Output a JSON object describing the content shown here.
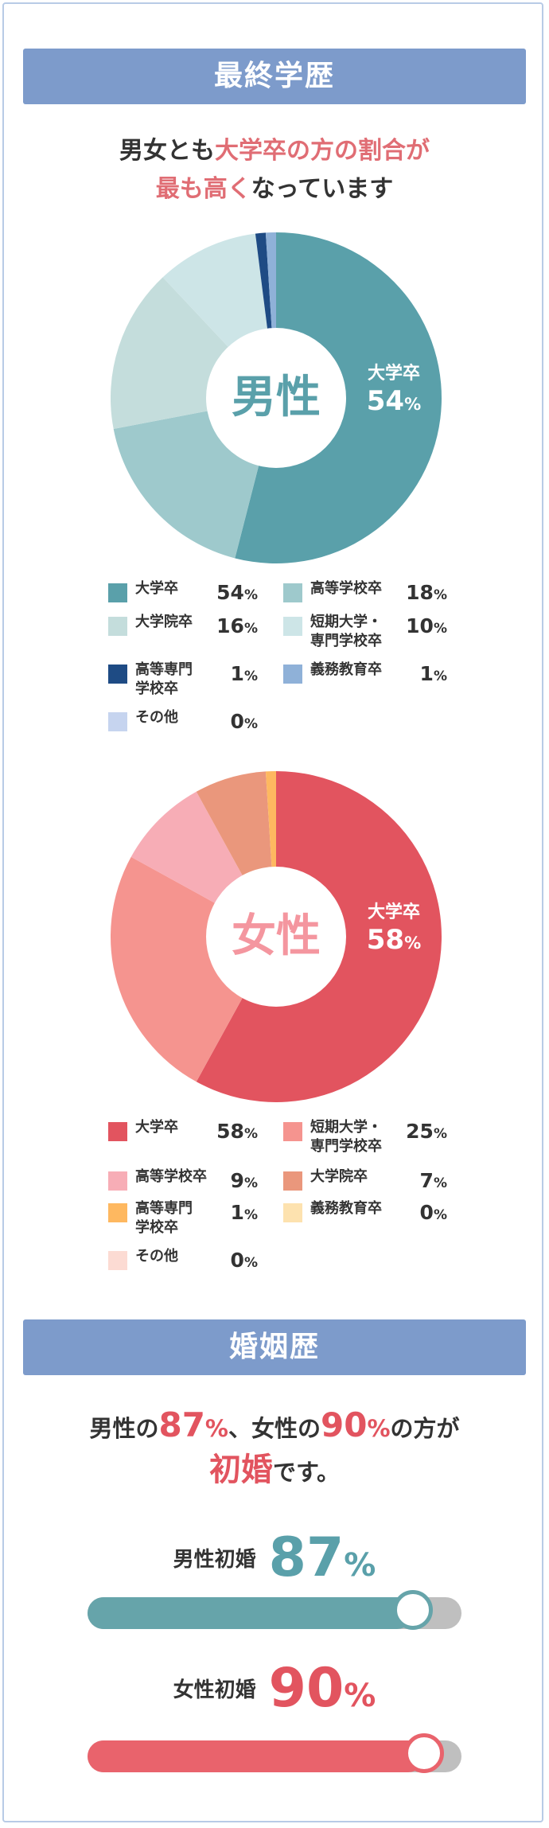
{
  "education": {
    "section_title": "最終学歴",
    "lead_line1_a": "男女とも",
    "lead_line1_b": "大学卒の方の割合が",
    "lead_line2_a": "最も高く",
    "lead_line2_b": "なっています",
    "male_center": "男性",
    "female_center": "女性"
  },
  "marriage": {
    "section_title": "婚姻歴",
    "lead_a": "男性の",
    "lead_male_num": "87",
    "lead_b": "、女性の",
    "lead_female_num": "90",
    "lead_c": "の方が",
    "lead_d": "初婚",
    "lead_e": "です。",
    "pct_sign": "%",
    "male_label": "男性初婚",
    "female_label": "女性初婚"
  },
  "colors": {
    "male_accent": "#5aa0aa",
    "female_accent": "#e2545f",
    "banner": "#7d9bcb",
    "track": "#bfbfbf"
  },
  "chart_data": [
    {
      "type": "pie",
      "title": "男性",
      "series": [
        {
          "name": "大学卒",
          "value": 54,
          "value_text": "54",
          "color": "#5aa0aa"
        },
        {
          "name": "高等学校卒",
          "value": 18,
          "value_text": "18",
          "color": "#9ec9cc"
        },
        {
          "name": "大学院卒",
          "value": 16,
          "value_text": "16",
          "color": "#c4dddc"
        },
        {
          "name": "短期大学・専門学校卒",
          "name_lines": [
            "短期大学・",
            "専門学校卒"
          ],
          "value": 10,
          "value_text": "10",
          "color": "#cde5e7"
        },
        {
          "name": "高等専門学校卒",
          "name_lines": [
            "高等専門",
            "学校卒"
          ],
          "value": 1,
          "value_text": "1",
          "color": "#1e4b84"
        },
        {
          "name": "義務教育卒",
          "value": 1,
          "value_text": "1",
          "color": "#8fb1d8"
        },
        {
          "name": "その他",
          "value": 0,
          "value_text": "0",
          "color": "#c6d4ef"
        }
      ],
      "highlight": {
        "name": "大学卒",
        "value": "54",
        "unit": "%"
      }
    },
    {
      "type": "pie",
      "title": "女性",
      "series": [
        {
          "name": "大学卒",
          "value": 58,
          "value_text": "58",
          "color": "#e2545f"
        },
        {
          "name": "短期大学・専門学校卒",
          "name_lines": [
            "短期大学・",
            "専門学校卒"
          ],
          "value": 25,
          "value_text": "25",
          "color": "#f5948f"
        },
        {
          "name": "高等学校卒",
          "value": 9,
          "value_text": "9",
          "color": "#f7adb6"
        },
        {
          "name": "大学院卒",
          "value": 7,
          "value_text": "7",
          "color": "#ea977c"
        },
        {
          "name": "高等専門学校卒",
          "name_lines": [
            "高等専門",
            "学校卒"
          ],
          "value": 1,
          "value_text": "1",
          "color": "#feb860"
        },
        {
          "name": "義務教育卒",
          "value": 0,
          "value_text": "0",
          "color": "#fde2af"
        },
        {
          "name": "その他",
          "value": 0,
          "value_text": "0",
          "color": "#fcdbd3"
        }
      ],
      "highlight": {
        "name": "大学卒",
        "value": "58",
        "unit": "%"
      }
    },
    {
      "type": "bar",
      "categories": [
        "男性初婚",
        "女性初婚"
      ],
      "values": [
        87,
        90
      ],
      "value_texts": [
        "87",
        "90"
      ],
      "unit": "%",
      "ylim": [
        0,
        100
      ],
      "colors": [
        "#5aa0aa",
        "#e9636c"
      ]
    }
  ]
}
